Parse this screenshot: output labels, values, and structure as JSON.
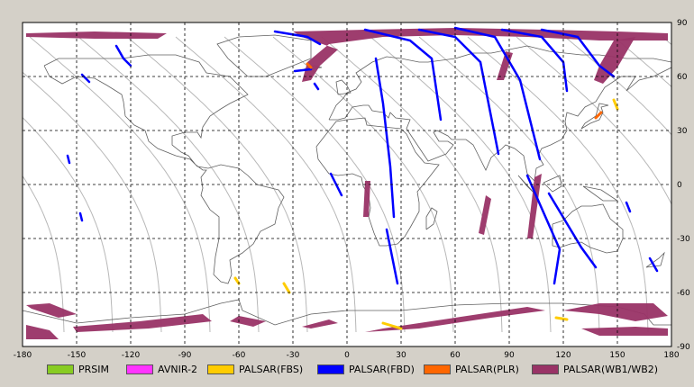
{
  "map": {
    "lon_range": [
      -180,
      180
    ],
    "lat_range": [
      -90,
      90
    ],
    "x_ticks": [
      "-180",
      "-150",
      "-120",
      "-90",
      "-60",
      "-30",
      "0",
      "30",
      "60",
      "90",
      "120",
      "150",
      "180"
    ],
    "y_ticks": [
      "90",
      "60",
      "30",
      "0",
      "-30",
      "-60",
      "-90"
    ],
    "background": "#ffffff",
    "grid": true,
    "coastline_color": "#606060",
    "orbit_track_color": "#b8b8b8"
  },
  "legend": [
    {
      "label": "PRSIM",
      "color": "#88cc22"
    },
    {
      "label": "AVNIR-2",
      "color": "#ff33ff"
    },
    {
      "label": "PALSAR(FBS)",
      "color": "#ffcc00"
    },
    {
      "label": "PALSAR(FBD)",
      "color": "#0000ff"
    },
    {
      "label": "PALSAR(PLR)",
      "color": "#ff6600"
    },
    {
      "label": "PALSAR(WB1/WB2)",
      "color": "#993366"
    }
  ],
  "coverage": {
    "wb_swaths": [
      {
        "pts": [
          [
            -178,
            84
          ],
          [
            -140,
            85
          ],
          [
            -100,
            84
          ],
          [
            -105,
            81
          ],
          [
            -140,
            81
          ],
          [
            -178,
            82
          ]
        ]
      },
      {
        "pts": [
          [
            -30,
            85
          ],
          [
            10,
            86
          ],
          [
            60,
            87
          ],
          [
            110,
            86
          ],
          [
            150,
            85
          ],
          [
            178,
            84
          ],
          [
            178,
            80
          ],
          [
            140,
            80
          ],
          [
            100,
            82
          ],
          [
            60,
            83
          ],
          [
            20,
            82
          ],
          [
            -10,
            78
          ],
          [
            -22,
            68
          ],
          [
            -25,
            57
          ],
          [
            -20,
            58
          ],
          [
            -15,
            66
          ],
          [
            -5,
            75
          ],
          [
            -25,
            82
          ]
        ]
      },
      {
        "pts": [
          [
            88,
            74
          ],
          [
            92,
            73
          ],
          [
            87,
            58
          ],
          [
            83,
            58
          ]
        ]
      },
      {
        "pts": [
          [
            148,
            80
          ],
          [
            160,
            82
          ],
          [
            150,
            65
          ],
          [
            142,
            56
          ],
          [
            137,
            58
          ],
          [
            140,
            66
          ]
        ]
      },
      {
        "pts": [
          [
            77,
            -6
          ],
          [
            80,
            -8
          ],
          [
            76,
            -28
          ],
          [
            73,
            -27
          ]
        ]
      },
      {
        "pts": [
          [
            10,
            2
          ],
          [
            13,
            2
          ],
          [
            12,
            -18
          ],
          [
            9,
            -18
          ]
        ]
      },
      {
        "pts": [
          [
            104,
            4
          ],
          [
            108,
            6
          ],
          [
            103,
            -30
          ],
          [
            100,
            -30
          ]
        ]
      },
      {
        "pts": [
          [
            -175,
            -69
          ],
          [
            -160,
            -74
          ],
          [
            -150,
            -72
          ],
          [
            -165,
            -66
          ],
          [
            -178,
            -67
          ]
        ]
      },
      {
        "pts": [
          [
            -150,
            -82
          ],
          [
            -110,
            -80
          ],
          [
            -75,
            -76
          ],
          [
            -80,
            -72
          ],
          [
            -115,
            -76
          ],
          [
            -152,
            -79
          ]
        ]
      },
      {
        "pts": [
          [
            -60,
            -73
          ],
          [
            -45,
            -76
          ],
          [
            -52,
            -79
          ],
          [
            -65,
            -76
          ]
        ]
      },
      {
        "pts": [
          [
            -20,
            -80
          ],
          [
            -5,
            -77
          ],
          [
            -10,
            -75
          ],
          [
            -25,
            -79
          ]
        ]
      },
      {
        "pts": [
          [
            10,
            -82
          ],
          [
            40,
            -80
          ],
          [
            80,
            -74
          ],
          [
            110,
            -70
          ],
          [
            100,
            -68
          ],
          [
            60,
            -74
          ],
          [
            20,
            -80
          ]
        ]
      },
      {
        "pts": [
          [
            120,
            -70
          ],
          [
            140,
            -66
          ],
          [
            170,
            -66
          ],
          [
            178,
            -73
          ],
          [
            160,
            -76
          ],
          [
            140,
            -72
          ]
        ]
      },
      {
        "pts": [
          [
            130,
            -80
          ],
          [
            160,
            -79
          ],
          [
            178,
            -80
          ],
          [
            178,
            -84
          ],
          [
            140,
            -84
          ]
        ]
      },
      {
        "pts": [
          [
            -178,
            -78
          ],
          [
            -165,
            -81
          ],
          [
            -160,
            -86
          ],
          [
            -178,
            -86
          ]
        ]
      }
    ],
    "fbd_strips": [
      {
        "pts": [
          [
            -29,
            63
          ],
          [
            -20,
            64
          ]
        ]
      },
      {
        "pts": [
          [
            -40,
            85
          ],
          [
            -22,
            82
          ],
          [
            -15,
            78
          ]
        ]
      },
      {
        "pts": [
          [
            -147,
            61
          ],
          [
            -143,
            57
          ]
        ]
      },
      {
        "pts": [
          [
            -128,
            77
          ],
          [
            -124,
            70
          ],
          [
            -120,
            66
          ]
        ]
      },
      {
        "pts": [
          [
            -155,
            16
          ],
          [
            -154,
            12
          ]
        ]
      },
      {
        "pts": [
          [
            -148,
            -16
          ],
          [
            -147,
            -20
          ]
        ]
      },
      {
        "pts": [
          [
            -9,
            6
          ],
          [
            -3,
            -6
          ]
        ]
      },
      {
        "pts": [
          [
            16,
            70
          ],
          [
            20,
            45
          ],
          [
            24,
            10
          ],
          [
            26,
            -18
          ]
        ]
      },
      {
        "pts": [
          [
            22,
            -25
          ],
          [
            28,
            -55
          ]
        ]
      },
      {
        "pts": [
          [
            10,
            86
          ],
          [
            35,
            80
          ],
          [
            47,
            70
          ],
          [
            52,
            36
          ]
        ]
      },
      {
        "pts": [
          [
            40,
            86
          ],
          [
            60,
            82
          ],
          [
            74,
            68
          ],
          [
            84,
            17
          ]
        ]
      },
      {
        "pts": [
          [
            60,
            87
          ],
          [
            82,
            82
          ],
          [
            96,
            58
          ],
          [
            107,
            14
          ]
        ]
      },
      {
        "pts": [
          [
            86,
            86
          ],
          [
            108,
            82
          ],
          [
            120,
            68
          ],
          [
            122,
            52
          ]
        ]
      },
      {
        "pts": [
          [
            108,
            86
          ],
          [
            128,
            82
          ],
          [
            140,
            66
          ],
          [
            148,
            60
          ]
        ]
      },
      {
        "pts": [
          [
            100,
            5
          ],
          [
            118,
            -36
          ],
          [
            115,
            -55
          ]
        ]
      },
      {
        "pts": [
          [
            112,
            -5
          ],
          [
            130,
            -35
          ],
          [
            138,
            -46
          ]
        ]
      },
      {
        "pts": [
          [
            -18,
            56
          ],
          [
            -16,
            53
          ]
        ]
      },
      {
        "pts": [
          [
            155,
            -10
          ],
          [
            157,
            -15
          ]
        ]
      },
      {
        "pts": [
          [
            168,
            -41
          ],
          [
            172,
            -48
          ]
        ]
      }
    ],
    "fbs_strips": [
      {
        "pts": [
          [
            -62,
            -52
          ],
          [
            -60,
            -55
          ]
        ]
      },
      {
        "pts": [
          [
            -35,
            -55
          ],
          [
            -32,
            -60
          ]
        ]
      },
      {
        "pts": [
          [
            20,
            -77
          ],
          [
            30,
            -80
          ]
        ]
      },
      {
        "pts": [
          [
            116,
            -74
          ],
          [
            122,
            -75
          ]
        ]
      },
      {
        "pts": [
          [
            148,
            47
          ],
          [
            150,
            42
          ]
        ]
      }
    ],
    "plr_points": [
      {
        "pts": [
          [
            138,
            37
          ],
          [
            141,
            40
          ]
        ]
      },
      {
        "pts": [
          [
            -22,
            67
          ],
          [
            -20,
            65
          ]
        ]
      }
    ]
  }
}
